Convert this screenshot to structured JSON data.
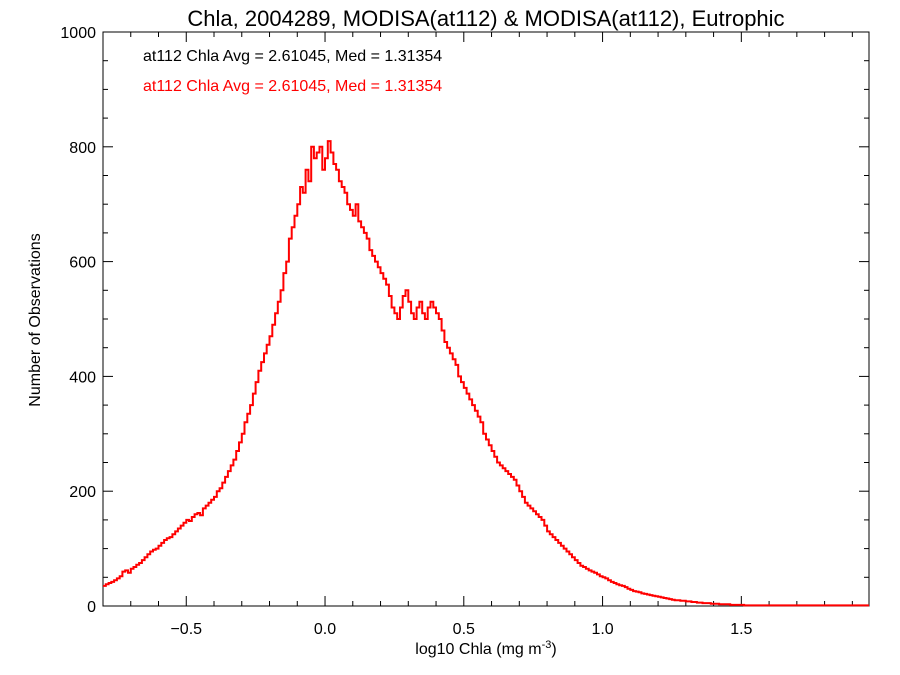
{
  "chart_data": {
    "type": "line",
    "step": true,
    "title": "Chla, 2004289, MODISA(at112) & MODISA(at112), Eutrophic",
    "xlabel": "log10 Chla (mg m",
    "xlabel_sup": "-3",
    "xlabel_end": ")",
    "ylabel": "Number of Observations",
    "xlim": [
      -0.8,
      1.96
    ],
    "ylim": [
      0,
      1000
    ],
    "x_ticks": [
      -0.5,
      0.0,
      0.5,
      1.0,
      1.5
    ],
    "x_tick_labels": [
      "−0.5",
      "0.0",
      "0.5",
      "1.0",
      "1.5"
    ],
    "y_ticks": [
      0,
      200,
      400,
      600,
      800,
      1000
    ],
    "y_tick_labels": [
      "0",
      "200",
      "400",
      "600",
      "800",
      "1000"
    ],
    "grid": false,
    "annotations": [
      {
        "text": "at112 Chla Avg = 2.61045, Med = 1.31354",
        "color": "#000000"
      },
      {
        "text": "at112 Chla Avg = 2.61045, Med = 1.31354",
        "color": "#ff0000"
      }
    ],
    "series_color": "#ff0000",
    "bin_width": 0.01,
    "x_start": -0.8,
    "values": [
      35,
      38,
      40,
      42,
      45,
      48,
      52,
      60,
      62,
      58,
      65,
      68,
      72,
      75,
      80,
      85,
      90,
      95,
      98,
      100,
      105,
      110,
      115,
      118,
      120,
      125,
      130,
      135,
      140,
      145,
      150,
      148,
      155,
      160,
      162,
      158,
      170,
      175,
      180,
      185,
      190,
      200,
      205,
      215,
      225,
      235,
      245,
      255,
      270,
      285,
      300,
      320,
      335,
      350,
      370,
      390,
      410,
      425,
      440,
      455,
      470,
      490,
      510,
      530,
      550,
      580,
      600,
      640,
      660,
      680,
      700,
      730,
      720,
      760,
      740,
      800,
      780,
      790,
      800,
      760,
      780,
      810,
      790,
      770,
      760,
      740,
      730,
      720,
      700,
      690,
      680,
      700,
      670,
      660,
      650,
      640,
      620,
      610,
      600,
      590,
      580,
      570,
      560,
      540,
      520,
      510,
      500,
      520,
      540,
      550,
      530,
      510,
      500,
      520,
      530,
      510,
      500,
      520,
      530,
      520,
      510,
      500,
      480,
      460,
      450,
      440,
      430,
      420,
      400,
      390,
      380,
      370,
      360,
      350,
      340,
      330,
      320,
      300,
      290,
      280,
      270,
      260,
      250,
      245,
      240,
      235,
      230,
      225,
      220,
      210,
      200,
      190,
      180,
      175,
      170,
      165,
      160,
      155,
      150,
      140,
      130,
      125,
      120,
      115,
      110,
      105,
      100,
      95,
      90,
      85,
      80,
      75,
      70,
      68,
      65,
      62,
      60,
      58,
      55,
      52,
      50,
      48,
      45,
      42,
      40,
      38,
      36,
      35,
      33,
      30,
      28,
      26,
      25,
      24,
      22,
      21,
      20,
      19,
      18,
      17,
      16,
      15,
      14,
      13,
      12,
      11,
      10,
      10,
      9,
      9,
      8,
      8,
      7,
      7,
      6,
      6,
      5,
      5,
      5,
      4,
      4,
      4,
      3,
      3,
      3,
      3,
      2,
      2,
      2,
      2,
      2,
      1,
      1,
      1,
      1,
      1,
      1,
      1,
      1,
      1,
      1,
      1,
      1,
      1,
      1,
      1,
      1,
      1,
      1,
      1,
      1,
      1,
      1,
      1,
      1,
      1,
      1,
      1,
      1,
      1,
      1,
      1,
      1,
      1,
      1,
      1,
      1,
      1,
      1,
      1,
      1,
      1,
      1,
      1,
      1,
      1
    ]
  }
}
